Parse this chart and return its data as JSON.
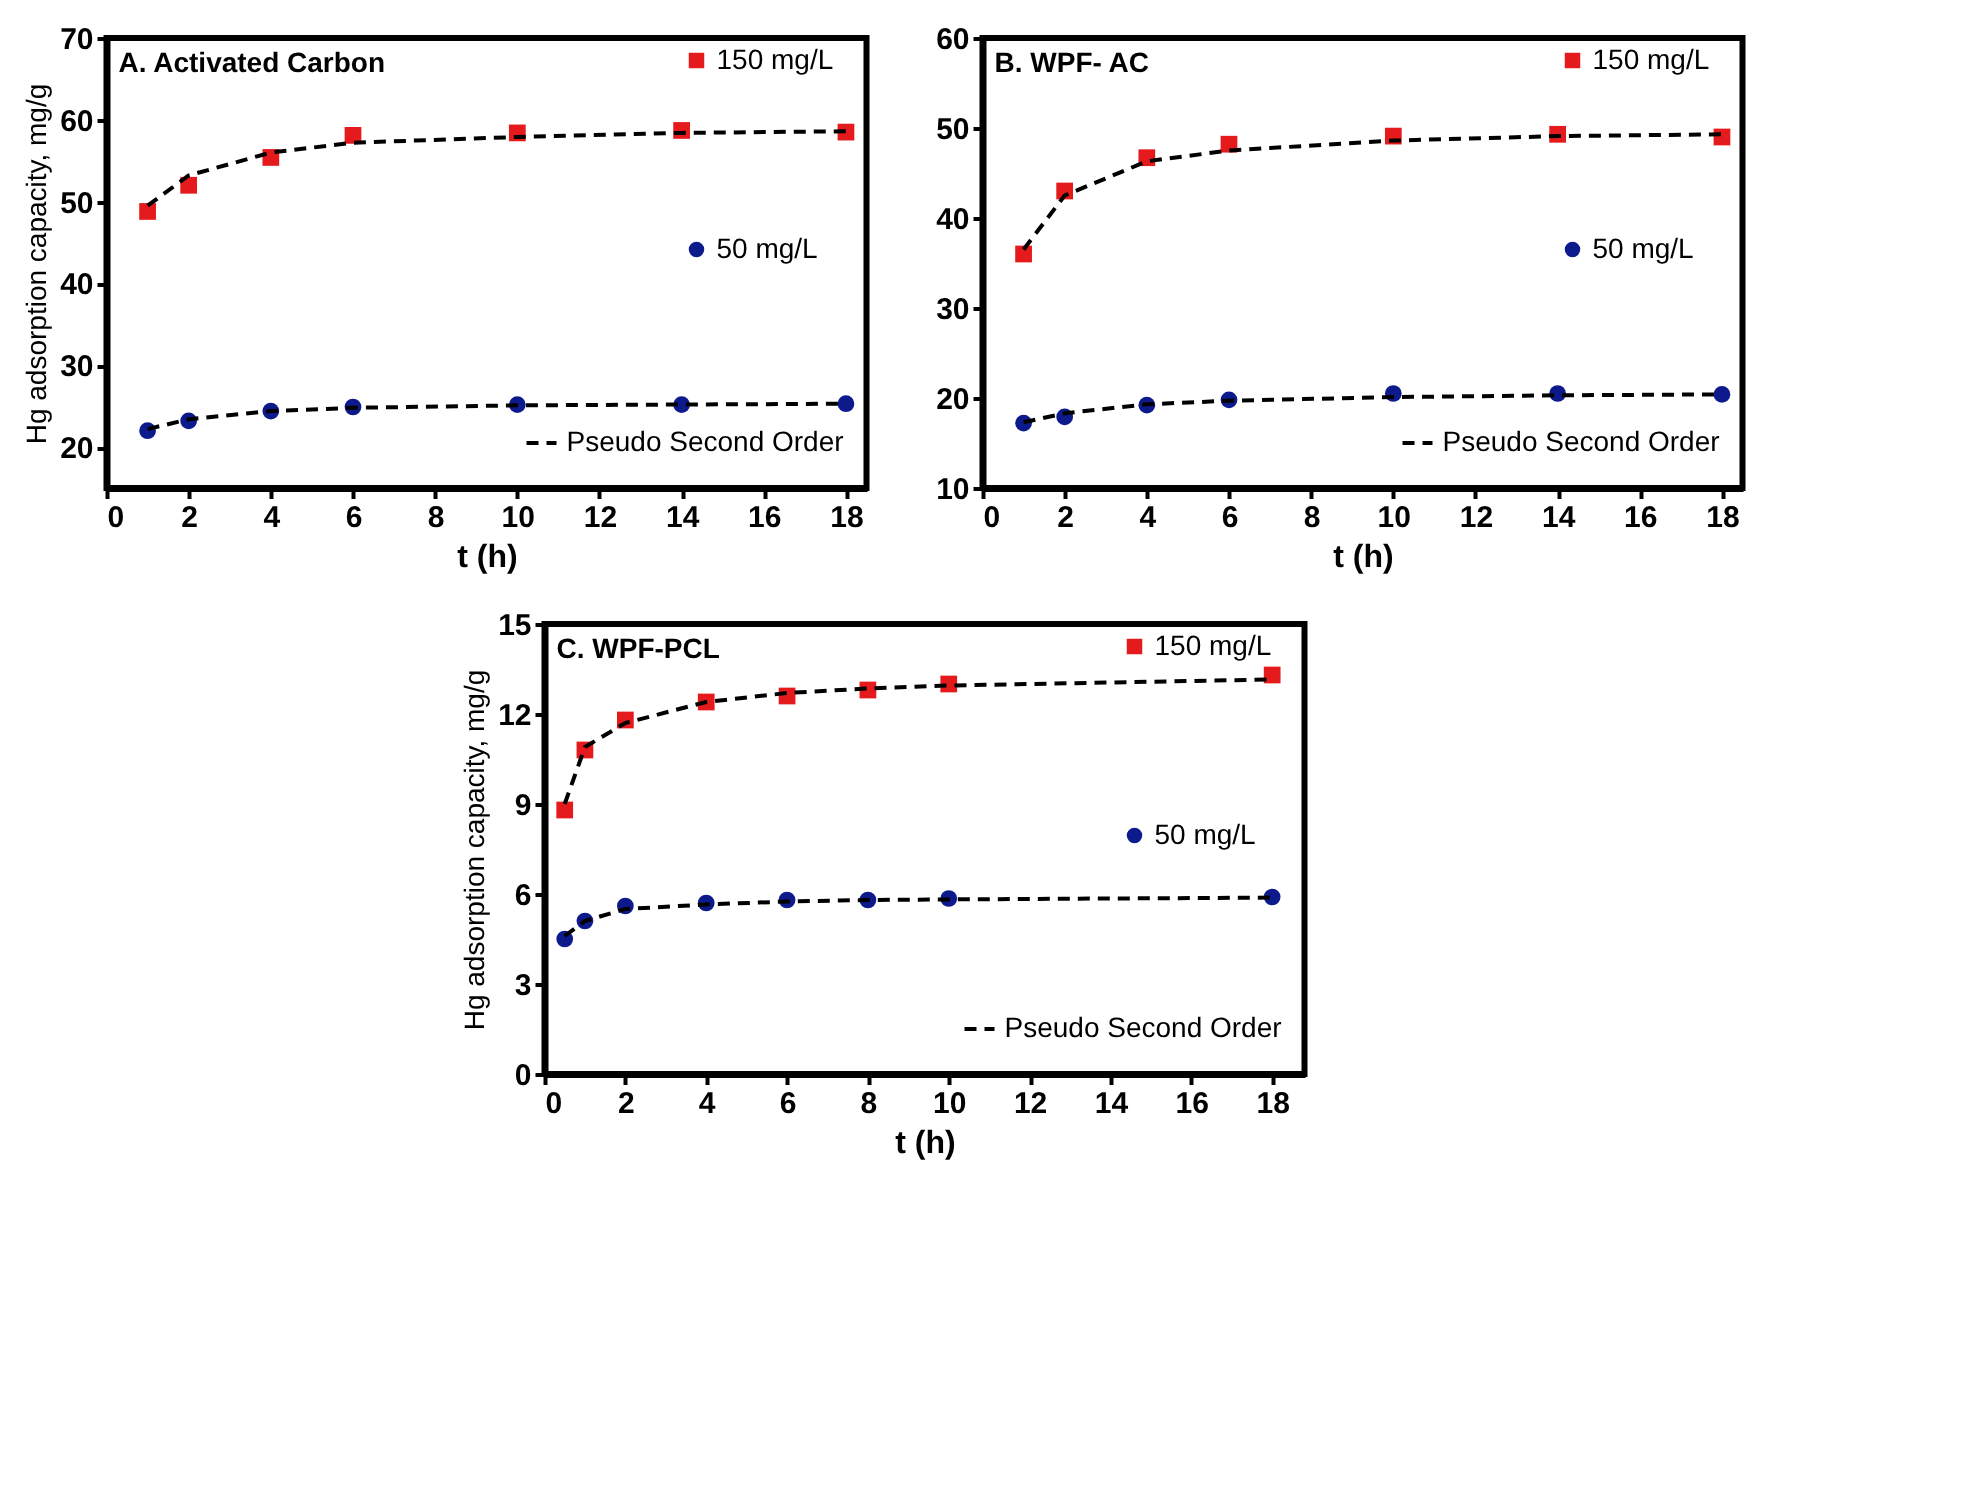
{
  "chart_data": [
    {
      "type": "scatter",
      "title": "A. Activated Carbon",
      "xlabel": "t (h)",
      "ylabel": "Hg adsorption capacity, mg/g",
      "xlim": [
        0,
        18.5
      ],
      "ylim": [
        15,
        70
      ],
      "xticks": [
        0,
        2,
        4,
        6,
        8,
        10,
        12,
        14,
        16,
        18
      ],
      "yticks": [
        20,
        30,
        40,
        50,
        60,
        70
      ],
      "grid": false,
      "legend": "right",
      "x": [
        1,
        2,
        4,
        6,
        10,
        14,
        18
      ],
      "series": [
        {
          "name": "150 mg/L",
          "marker": "square",
          "color": "#e41a1c",
          "values": [
            48.8,
            52.0,
            55.4,
            58.1,
            58.4,
            58.7,
            58.5
          ]
        },
        {
          "name": "50 mg/L",
          "marker": "circle",
          "color": "#0d1a8c",
          "values": [
            22.0,
            23.2,
            24.4,
            24.9,
            25.2,
            25.2,
            25.3
          ]
        },
        {
          "name": "Pseudo Second Order",
          "type": "line",
          "line_style": "dashed",
          "marker": "none",
          "color": "#000000",
          "values": [
            49.5,
            53.2,
            56.0,
            57.2,
            57.9,
            58.4,
            58.6
          ]
        },
        {
          "type": "line",
          "line_style": "dashed",
          "marker": "none",
          "color": "#000000",
          "values": [
            22.2,
            23.4,
            24.4,
            24.8,
            25.1,
            25.2,
            25.3
          ]
        }
      ]
    },
    {
      "type": "scatter",
      "title": "B.  WPF- AC",
      "xlabel": "t (h)",
      "xlim": [
        0,
        18.5
      ],
      "ylim": [
        10,
        60
      ],
      "xticks": [
        0,
        2,
        4,
        6,
        8,
        10,
        12,
        14,
        16,
        18
      ],
      "yticks": [
        10,
        20,
        30,
        40,
        50,
        60
      ],
      "grid": false,
      "legend": "right",
      "x": [
        1,
        2,
        4,
        6,
        10,
        14,
        18
      ],
      "series": [
        {
          "name": "150 mg/L",
          "marker": "square",
          "color": "#e41a1c",
          "values": [
            36.0,
            43.0,
            46.7,
            48.2,
            49.1,
            49.3,
            49.0
          ]
        },
        {
          "name": "50 mg/L",
          "marker": "circle",
          "color": "#0d1a8c",
          "values": [
            17.2,
            17.9,
            19.2,
            19.8,
            20.5,
            20.5,
            20.4
          ]
        },
        {
          "name": "Pseudo Second Order",
          "type": "line",
          "line_style": "dashed",
          "marker": "none",
          "color": "#000000",
          "values": [
            36.5,
            42.5,
            46.3,
            47.5,
            48.6,
            49.1,
            49.3
          ]
        },
        {
          "type": "line",
          "line_style": "dashed",
          "marker": "none",
          "color": "#000000",
          "values": [
            17.3,
            18.3,
            19.3,
            19.7,
            20.1,
            20.3,
            20.4
          ]
        }
      ]
    },
    {
      "type": "scatter",
      "title": "C. WPF-PCL",
      "xlabel": "t (h)",
      "ylabel": "Hg adsorption capacity, mg/g",
      "xlim": [
        0,
        18.8
      ],
      "ylim": [
        0,
        15
      ],
      "xticks": [
        0,
        2,
        4,
        6,
        8,
        10,
        12,
        14,
        16,
        18
      ],
      "yticks": [
        0,
        3,
        6,
        9,
        12,
        15
      ],
      "grid": false,
      "legend": "right",
      "x": [
        0.5,
        1,
        2,
        4,
        6,
        8,
        10,
        18
      ],
      "series": [
        {
          "name": "150 mg/L",
          "marker": "square",
          "color": "#e41a1c",
          "values": [
            8.8,
            10.8,
            11.8,
            12.4,
            12.6,
            12.8,
            13.0,
            13.3
          ]
        },
        {
          "name": "50 mg/L",
          "marker": "circle",
          "color": "#0d1a8c",
          "values": [
            4.5,
            5.1,
            5.6,
            5.7,
            5.8,
            5.8,
            5.85,
            5.9
          ]
        },
        {
          "name": "Pseudo Second Order",
          "type": "line",
          "line_style": "dashed",
          "marker": "none",
          "color": "#000000",
          "values": [
            9.0,
            10.9,
            11.7,
            12.4,
            12.7,
            12.85,
            12.95,
            13.15
          ]
        },
        {
          "type": "line",
          "line_style": "dashed",
          "marker": "none",
          "color": "#000000",
          "values": [
            4.6,
            5.1,
            5.5,
            5.65,
            5.75,
            5.8,
            5.82,
            5.88
          ]
        }
      ]
    }
  ]
}
